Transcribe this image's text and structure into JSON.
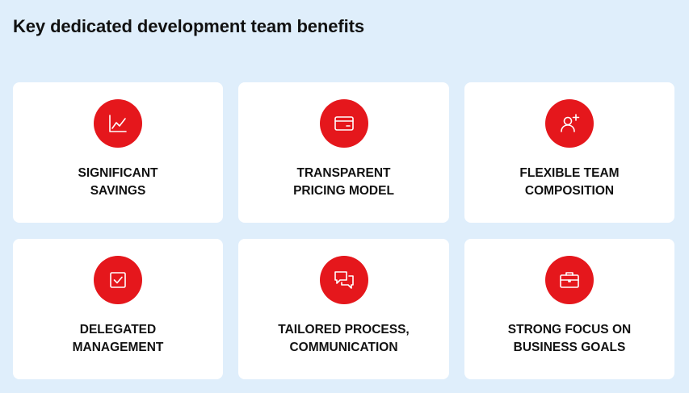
{
  "page": {
    "title": "Key dedicated development team benefits"
  },
  "colors": {
    "background": "#dfeefb",
    "card": "#ffffff",
    "accent": "#e5171c",
    "text": "#111111"
  },
  "cards": [
    {
      "icon": "chart-line-icon",
      "line1": "SIGNIFICANT",
      "line2": "SAVINGS"
    },
    {
      "icon": "credit-card-icon",
      "line1": "TRANSPARENT",
      "line2": "PRICING MODEL"
    },
    {
      "icon": "user-add-icon",
      "line1": "FLEXIBLE TEAM",
      "line2": "COMPOSITION"
    },
    {
      "icon": "checkbox-icon",
      "line1": "DELEGATED",
      "line2": "MANAGEMENT"
    },
    {
      "icon": "chat-bubbles-icon",
      "line1": "TAILORED PROCESS,",
      "line2": "COMMUNICATION"
    },
    {
      "icon": "briefcase-icon",
      "line1": "STRONG FOCUS ON",
      "line2": "BUSINESS GOALS"
    }
  ]
}
